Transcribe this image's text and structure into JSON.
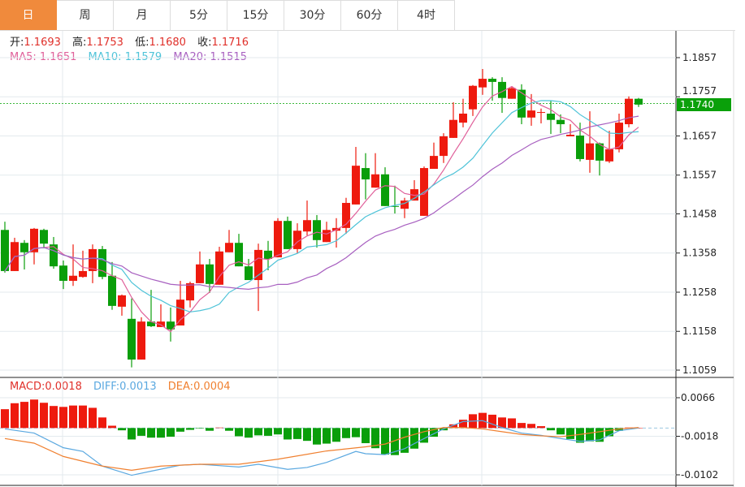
{
  "tabs": [
    {
      "label": "日",
      "active": true
    },
    {
      "label": "周"
    },
    {
      "label": "月"
    },
    {
      "label": "5分"
    },
    {
      "label": "15分"
    },
    {
      "label": "30分"
    },
    {
      "label": "60分"
    },
    {
      "label": "4时"
    }
  ],
  "ohlc_info": {
    "open_label": "开:",
    "open": "1.1693",
    "high_label": "高:",
    "high": "1.1753",
    "low_label": "低:",
    "low": "1.1680",
    "close_label": "收:",
    "close": "1.1716"
  },
  "ma_info": {
    "ma5": "MA5: 1.1651",
    "ma10": "MA10: 1.1579",
    "ma20": "MA20: 1.1515"
  },
  "macd_info": {
    "macd": "MACD:0.0018",
    "diff": "DIFF:0.0013",
    "dea": "DEA:0.0004"
  },
  "current_price": "1.1740",
  "colors": {
    "up": "#ee1a0e",
    "down": "#0a9e0a",
    "tab_active": "#f08a3c",
    "ma5": "#e0609a",
    "ma10": "#4ec3d8",
    "ma20": "#a860c0",
    "diff": "#5aa8e0",
    "dea": "#f08030",
    "price_line": "#3cb83c"
  },
  "chart_data": [
    {
      "type": "candlestick",
      "price_axis_ticks": [
        "1.1857",
        "1.1757",
        "1.1657",
        "1.1557",
        "1.1458",
        "1.1358",
        "1.1258",
        "1.1158",
        "1.1059"
      ],
      "ylim": [
        1.1059,
        1.1857
      ],
      "grid": true,
      "up_color_meaning": "red = close above open",
      "candles": [
        [
          1.1417,
          1.1438,
          1.1308,
          1.1312
        ],
        [
          1.1312,
          1.1397,
          1.1312,
          1.1386
        ],
        [
          1.1384,
          1.1391,
          1.1316,
          1.136
        ],
        [
          1.136,
          1.1422,
          1.1329,
          1.142
        ],
        [
          1.1417,
          1.142,
          1.137,
          1.1382
        ],
        [
          1.138,
          1.1399,
          1.1318,
          1.1324
        ],
        [
          1.1326,
          1.1339,
          1.1266,
          1.1287
        ],
        [
          1.1287,
          1.138,
          1.1274,
          1.13
        ],
        [
          1.1297,
          1.1364,
          1.1295,
          1.1312
        ],
        [
          1.1312,
          1.138,
          1.1281,
          1.1368
        ],
        [
          1.1368,
          1.1376,
          1.1291,
          1.1297
        ],
        [
          1.13,
          1.1335,
          1.1213,
          1.1223
        ],
        [
          1.1221,
          1.1252,
          1.1198,
          1.125
        ],
        [
          1.119,
          1.1242,
          1.1066,
          1.1086
        ],
        [
          1.1086,
          1.1194,
          1.1086,
          1.1183
        ],
        [
          1.1183,
          1.1264,
          1.1169,
          1.1171
        ],
        [
          1.1169,
          1.1227,
          1.1169,
          1.1183
        ],
        [
          1.1183,
          1.1219,
          1.1132,
          1.1163
        ],
        [
          1.1173,
          1.1287,
          1.1173,
          1.1239
        ],
        [
          1.1237,
          1.1285,
          1.1219,
          1.1281
        ],
        [
          1.1281,
          1.1362,
          1.1281,
          1.1329
        ],
        [
          1.1329,
          1.1343,
          1.1256,
          1.1279
        ],
        [
          1.1277,
          1.1374,
          1.1277,
          1.1362
        ],
        [
          1.136,
          1.1417,
          1.136,
          1.1384
        ],
        [
          1.1384,
          1.1407,
          1.1324,
          1.1324
        ],
        [
          1.1324,
          1.1343,
          1.1289,
          1.1289
        ],
        [
          1.1289,
          1.1382,
          1.121,
          1.1366
        ],
        [
          1.1364,
          1.1389,
          1.1314,
          1.1343
        ],
        [
          1.1347,
          1.1447,
          1.1347,
          1.144
        ],
        [
          1.144,
          1.1451,
          1.1368,
          1.1368
        ],
        [
          1.1368,
          1.1434,
          1.1358,
          1.1415
        ],
        [
          1.1413,
          1.1492,
          1.1403,
          1.1442
        ],
        [
          1.1442,
          1.1455,
          1.1372,
          1.1391
        ],
        [
          1.1386,
          1.1438,
          1.1386,
          1.1417
        ],
        [
          1.1415,
          1.1447,
          1.1372,
          1.1422
        ],
        [
          1.1422,
          1.1499,
          1.1407,
          1.1486
        ],
        [
          1.1482,
          1.1629,
          1.1482,
          1.1581
        ],
        [
          1.1575,
          1.1613,
          1.1495,
          1.1546
        ],
        [
          1.1525,
          1.1613,
          1.1525,
          1.1559
        ],
        [
          1.1559,
          1.1577,
          1.1478,
          1.1478
        ],
        [
          1.1478,
          1.153,
          1.1459,
          1.1476
        ],
        [
          1.1471,
          1.1499,
          1.1447,
          1.1492
        ],
        [
          1.1492,
          1.1544,
          1.1492,
          1.1521
        ],
        [
          1.1453,
          1.1579,
          1.1453,
          1.1575
        ],
        [
          1.1573,
          1.164,
          1.1573,
          1.1606
        ],
        [
          1.1606,
          1.1664,
          1.1588,
          1.1656
        ],
        [
          1.1652,
          1.1743,
          1.1652,
          1.1698
        ],
        [
          1.1691,
          1.1752,
          1.1679,
          1.1714
        ],
        [
          1.1725,
          1.1787,
          1.1708,
          1.1785
        ],
        [
          1.1781,
          1.1828,
          1.1762,
          1.1803
        ],
        [
          1.1803,
          1.1807,
          1.1747,
          1.1795
        ],
        [
          1.1795,
          1.1807,
          1.1716,
          1.1754
        ],
        [
          1.1752,
          1.1783,
          1.1752,
          1.1779
        ],
        [
          1.1775,
          1.1789,
          1.1687,
          1.1704
        ],
        [
          1.1704,
          1.1764,
          1.1683,
          1.1722
        ],
        [
          1.1716,
          1.1727,
          1.1689,
          1.1718
        ],
        [
          1.1714,
          1.1747,
          1.1662,
          1.1698
        ],
        [
          1.1698,
          1.1712,
          1.1664,
          1.1687
        ],
        [
          1.1656,
          1.1687,
          1.1656,
          1.166
        ],
        [
          1.1658,
          1.1691,
          1.1592,
          1.1598
        ],
        [
          1.1596,
          1.172,
          1.1563,
          1.1638
        ],
        [
          1.1638,
          1.164,
          1.1556,
          1.1594
        ],
        [
          1.1592,
          1.167,
          1.1588,
          1.1623
        ],
        [
          1.1623,
          1.1714,
          1.1615,
          1.1691
        ],
        [
          1.1687,
          1.1758,
          1.1679,
          1.1752
        ],
        [
          1.1752,
          1.1754,
          1.1731,
          1.1737
        ]
      ],
      "moving_averages": [
        {
          "name": "MA5",
          "period": 5
        },
        {
          "name": "MA10",
          "period": 10
        },
        {
          "name": "MA20",
          "period": 20
        }
      ],
      "current_price": 1.174
    },
    {
      "type": "bar+line",
      "macd_axis_ticks": [
        "0.0066",
        "-0.0018",
        "-0.0102"
      ],
      "ylim": [
        -0.0102,
        0.0066
      ],
      "macd_histogram": [
        0.0041,
        0.0054,
        0.0057,
        0.0062,
        0.0055,
        0.0048,
        0.0046,
        0.0049,
        0.0049,
        0.0044,
        0.0023,
        0.0005,
        -0.0005,
        -0.0025,
        -0.0017,
        -0.0021,
        -0.0021,
        -0.0019,
        -0.0008,
        -0.0004,
        -0.0001,
        -0.0006,
        0.0001,
        -0.0006,
        -0.0018,
        -0.0021,
        -0.0016,
        -0.0017,
        -0.0014,
        -0.0025,
        -0.0024,
        -0.0028,
        -0.0036,
        -0.0034,
        -0.003,
        -0.0022,
        -0.002,
        -0.0033,
        -0.0044,
        -0.0058,
        -0.0059,
        -0.0054,
        -0.0045,
        -0.0032,
        -0.0019,
        -0.0005,
        0.0008,
        0.0018,
        0.003,
        0.0033,
        0.0029,
        0.0023,
        0.0021,
        0.0011,
        0.0009,
        0.0004,
        -0.0005,
        -0.0014,
        -0.0024,
        -0.0032,
        -0.0029,
        -0.003,
        -0.0018,
        -0.0006,
        0.0001,
        0.0
      ],
      "diff": [
        [
          1,
          -0.0002
        ],
        [
          4,
          -0.0011
        ],
        [
          7,
          -0.0043
        ],
        [
          9,
          -0.0051
        ],
        [
          11,
          -0.0083
        ],
        [
          14,
          -0.0103
        ],
        [
          16,
          -0.0094
        ],
        [
          19,
          -0.0081
        ],
        [
          21,
          -0.0079
        ],
        [
          25,
          -0.0085
        ],
        [
          27,
          -0.0079
        ],
        [
          30,
          -0.009
        ],
        [
          32,
          -0.0086
        ],
        [
          34,
          -0.0075
        ],
        [
          37,
          -0.0051
        ],
        [
          38,
          -0.0056
        ],
        [
          40,
          -0.0058
        ],
        [
          42,
          -0.0045
        ],
        [
          44,
          -0.0023
        ],
        [
          46,
          -0.0002
        ],
        [
          48,
          0.0014
        ],
        [
          50,
          0.0016
        ],
        [
          52,
          0.0001
        ],
        [
          54,
          -0.0011
        ],
        [
          56,
          -0.0016
        ],
        [
          58,
          -0.0023
        ],
        [
          60,
          -0.0029
        ],
        [
          62,
          -0.0026
        ],
        [
          64,
          -0.0006
        ],
        [
          66,
          0.0
        ]
      ],
      "dea": [
        [
          1,
          -0.0023
        ],
        [
          4,
          -0.0033
        ],
        [
          7,
          -0.0062
        ],
        [
          11,
          -0.0083
        ],
        [
          14,
          -0.0092
        ],
        [
          17,
          -0.0083
        ],
        [
          21,
          -0.0079
        ],
        [
          25,
          -0.0079
        ],
        [
          29,
          -0.0068
        ],
        [
          34,
          -0.005
        ],
        [
          38,
          -0.0041
        ],
        [
          40,
          -0.0035
        ],
        [
          42,
          -0.002
        ],
        [
          44,
          -0.0008
        ],
        [
          46,
          0.0001
        ],
        [
          48,
          0.0001
        ],
        [
          50,
          -0.0002
        ],
        [
          52,
          -0.0008
        ],
        [
          54,
          -0.0014
        ],
        [
          56,
          -0.0017
        ],
        [
          58,
          -0.0019
        ],
        [
          60,
          -0.0014
        ],
        [
          62,
          -0.0008
        ],
        [
          64,
          -0.0002
        ],
        [
          66,
          0.0001
        ]
      ]
    }
  ]
}
